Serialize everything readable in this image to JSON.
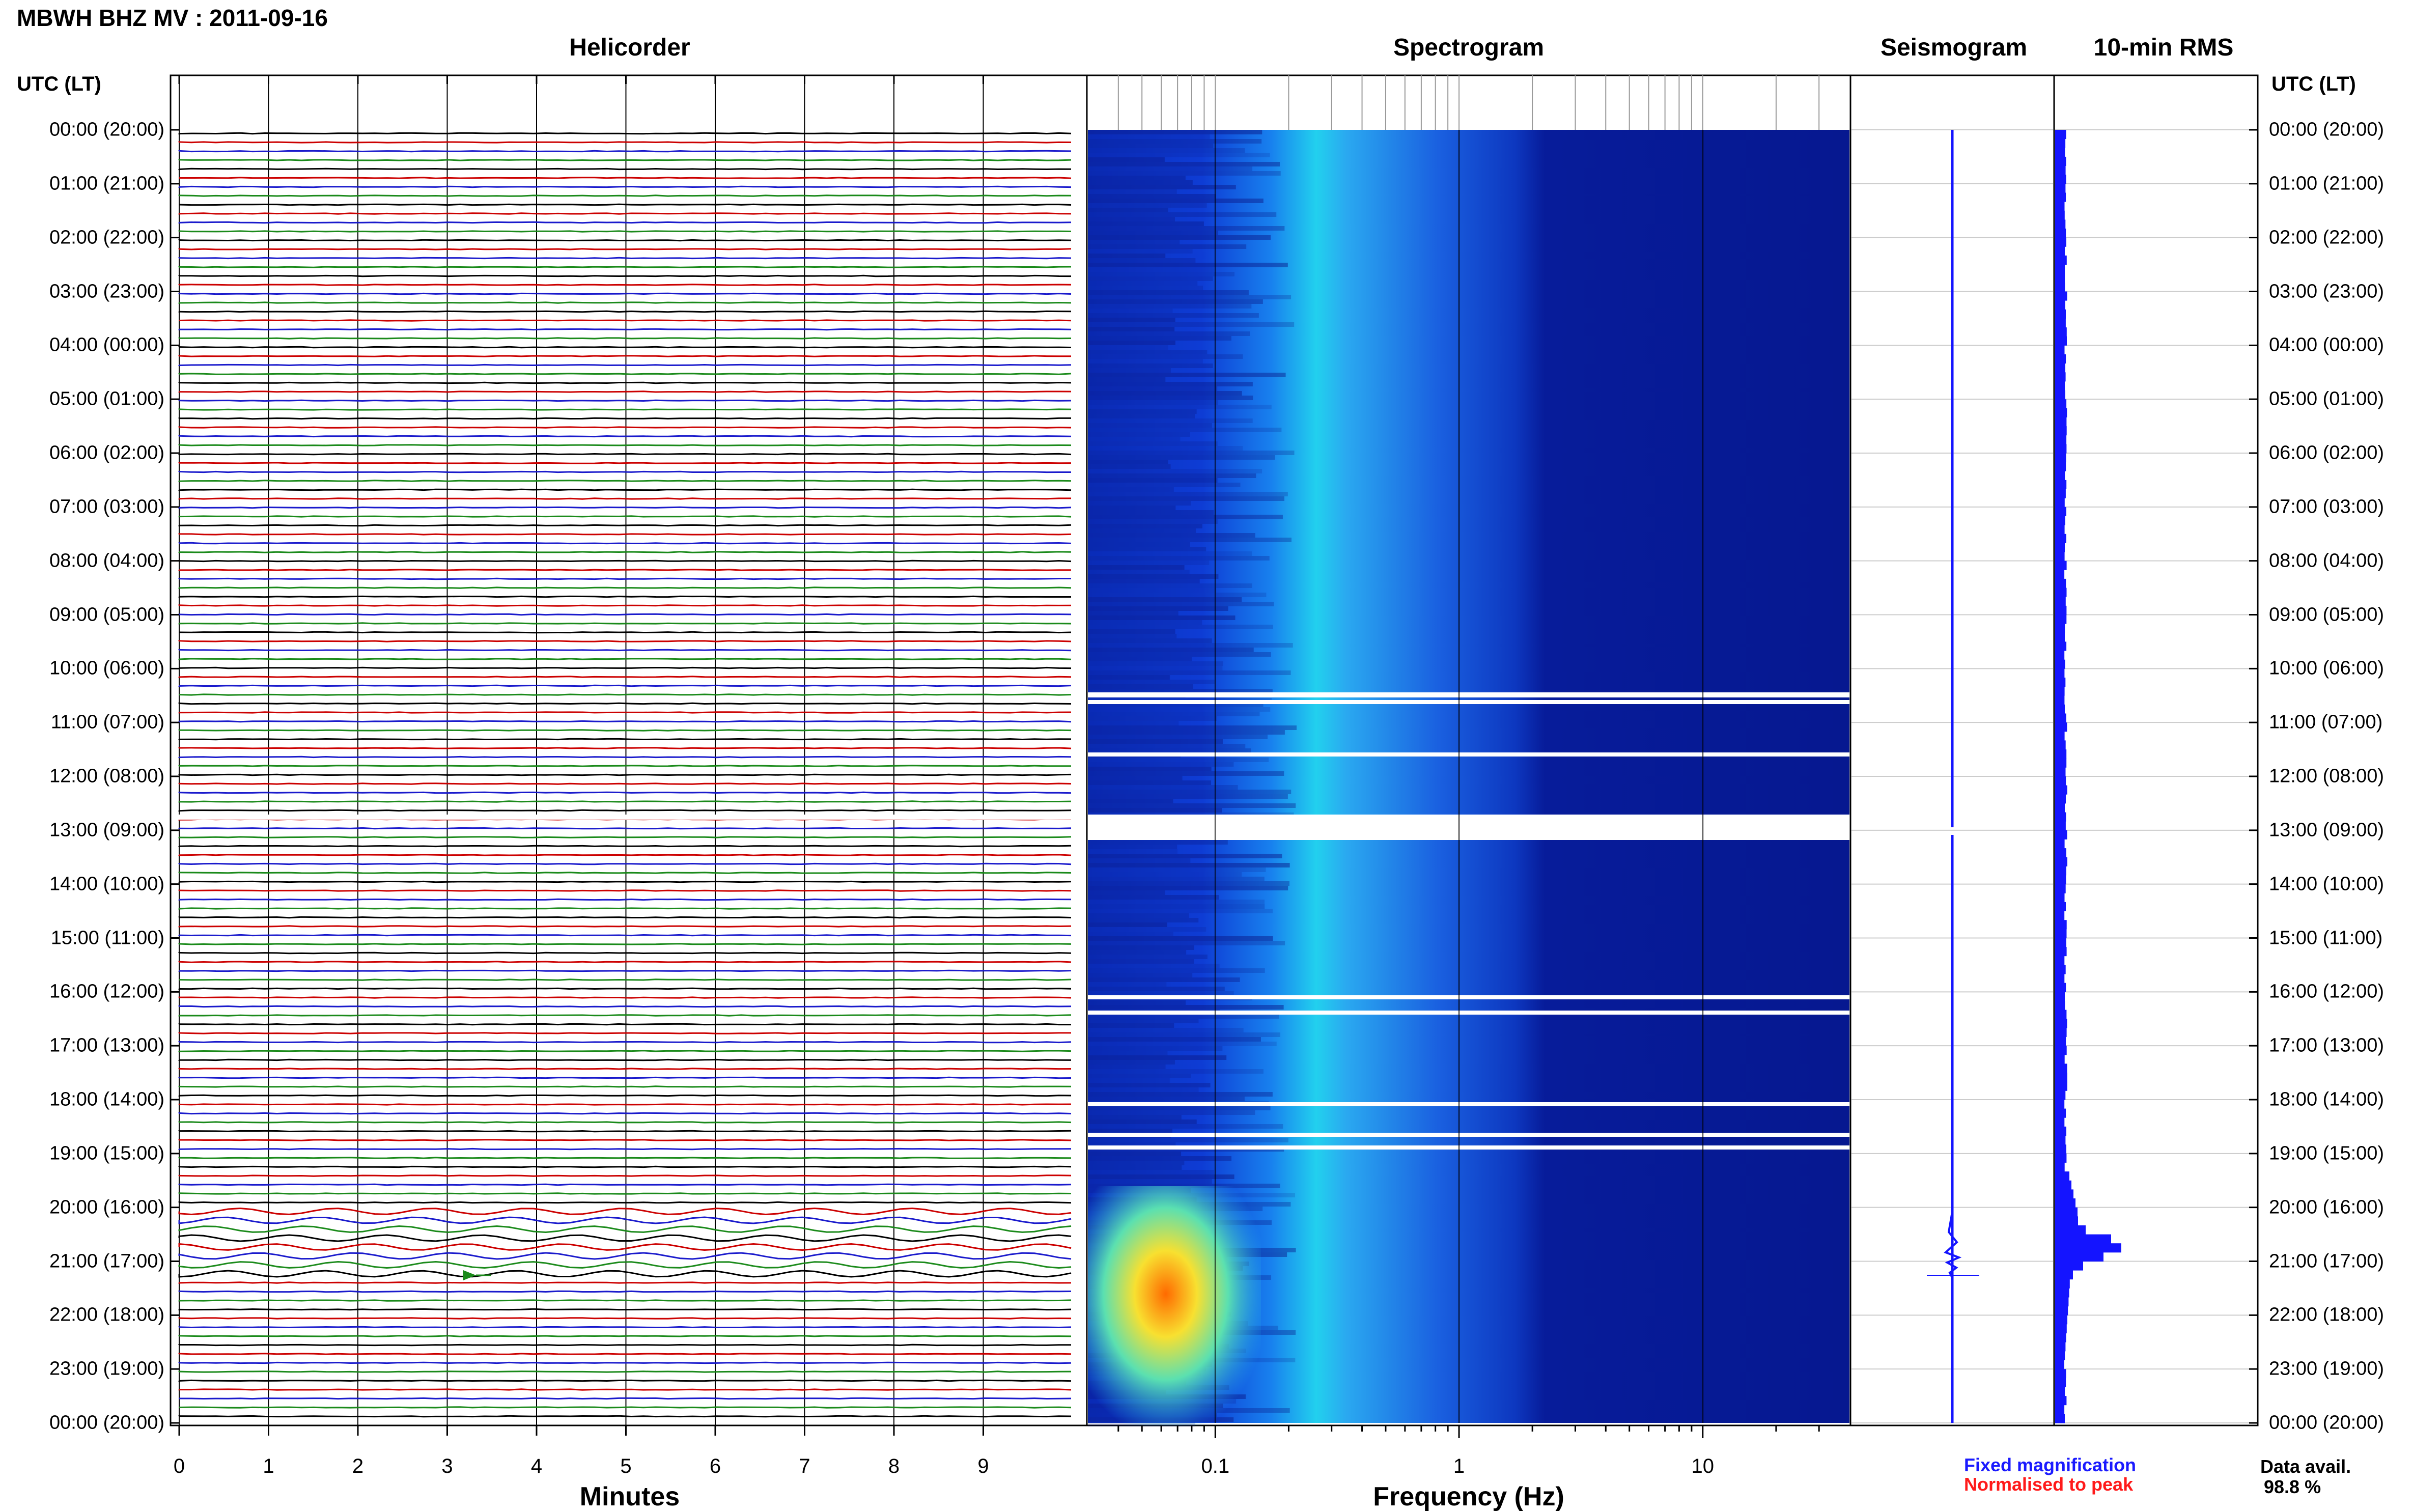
{
  "header": {
    "title": "MBWH BHZ MV : 2011-09-16"
  },
  "panels": {
    "helicorder": "Helicorder",
    "spectrogram": "Spectrogram",
    "seismogram": "Seismogram",
    "rms": "10-min RMS"
  },
  "axes": {
    "left_header": "UTC (LT)",
    "right_header": "UTC (LT)",
    "minutes_label": "Minutes",
    "minutes_ticks": [
      "0",
      "1",
      "2",
      "3",
      "4",
      "5",
      "6",
      "7",
      "8",
      "9"
    ],
    "frequency_label": "Frequency (Hz)",
    "frequency_ticks": [
      "0.1",
      "1",
      "10"
    ],
    "time_labels": [
      "00:00 (20:00)",
      "01:00 (21:00)",
      "02:00 (22:00)",
      "03:00 (23:00)",
      "04:00 (00:00)",
      "05:00 (01:00)",
      "06:00 (02:00)",
      "07:00 (03:00)",
      "08:00 (04:00)",
      "09:00 (05:00)",
      "10:00 (06:00)",
      "11:00 (07:00)",
      "12:00 (08:00)",
      "13:00 (09:00)",
      "14:00 (10:00)",
      "15:00 (11:00)",
      "16:00 (12:00)",
      "17:00 (13:00)",
      "18:00 (14:00)",
      "19:00 (15:00)",
      "20:00 (16:00)",
      "21:00 (17:00)",
      "22:00 (18:00)",
      "23:00 (19:00)",
      "00:00 (20:00)"
    ]
  },
  "legend": {
    "fixed": "Fixed magnification",
    "normalised": "Normalised to peak",
    "fixed_color": "#1a1aff",
    "normalised_color": "#ff1a1a"
  },
  "data_availability": {
    "label": "Data avail.",
    "value": "98.8 %"
  },
  "colors": {
    "trace_cycle": [
      "#000000",
      "#cc0000",
      "#1a1acc",
      "#1a8a1a"
    ],
    "spectrogram_base": "#0a1f9e",
    "rms_bar": "#1414ff"
  }
}
